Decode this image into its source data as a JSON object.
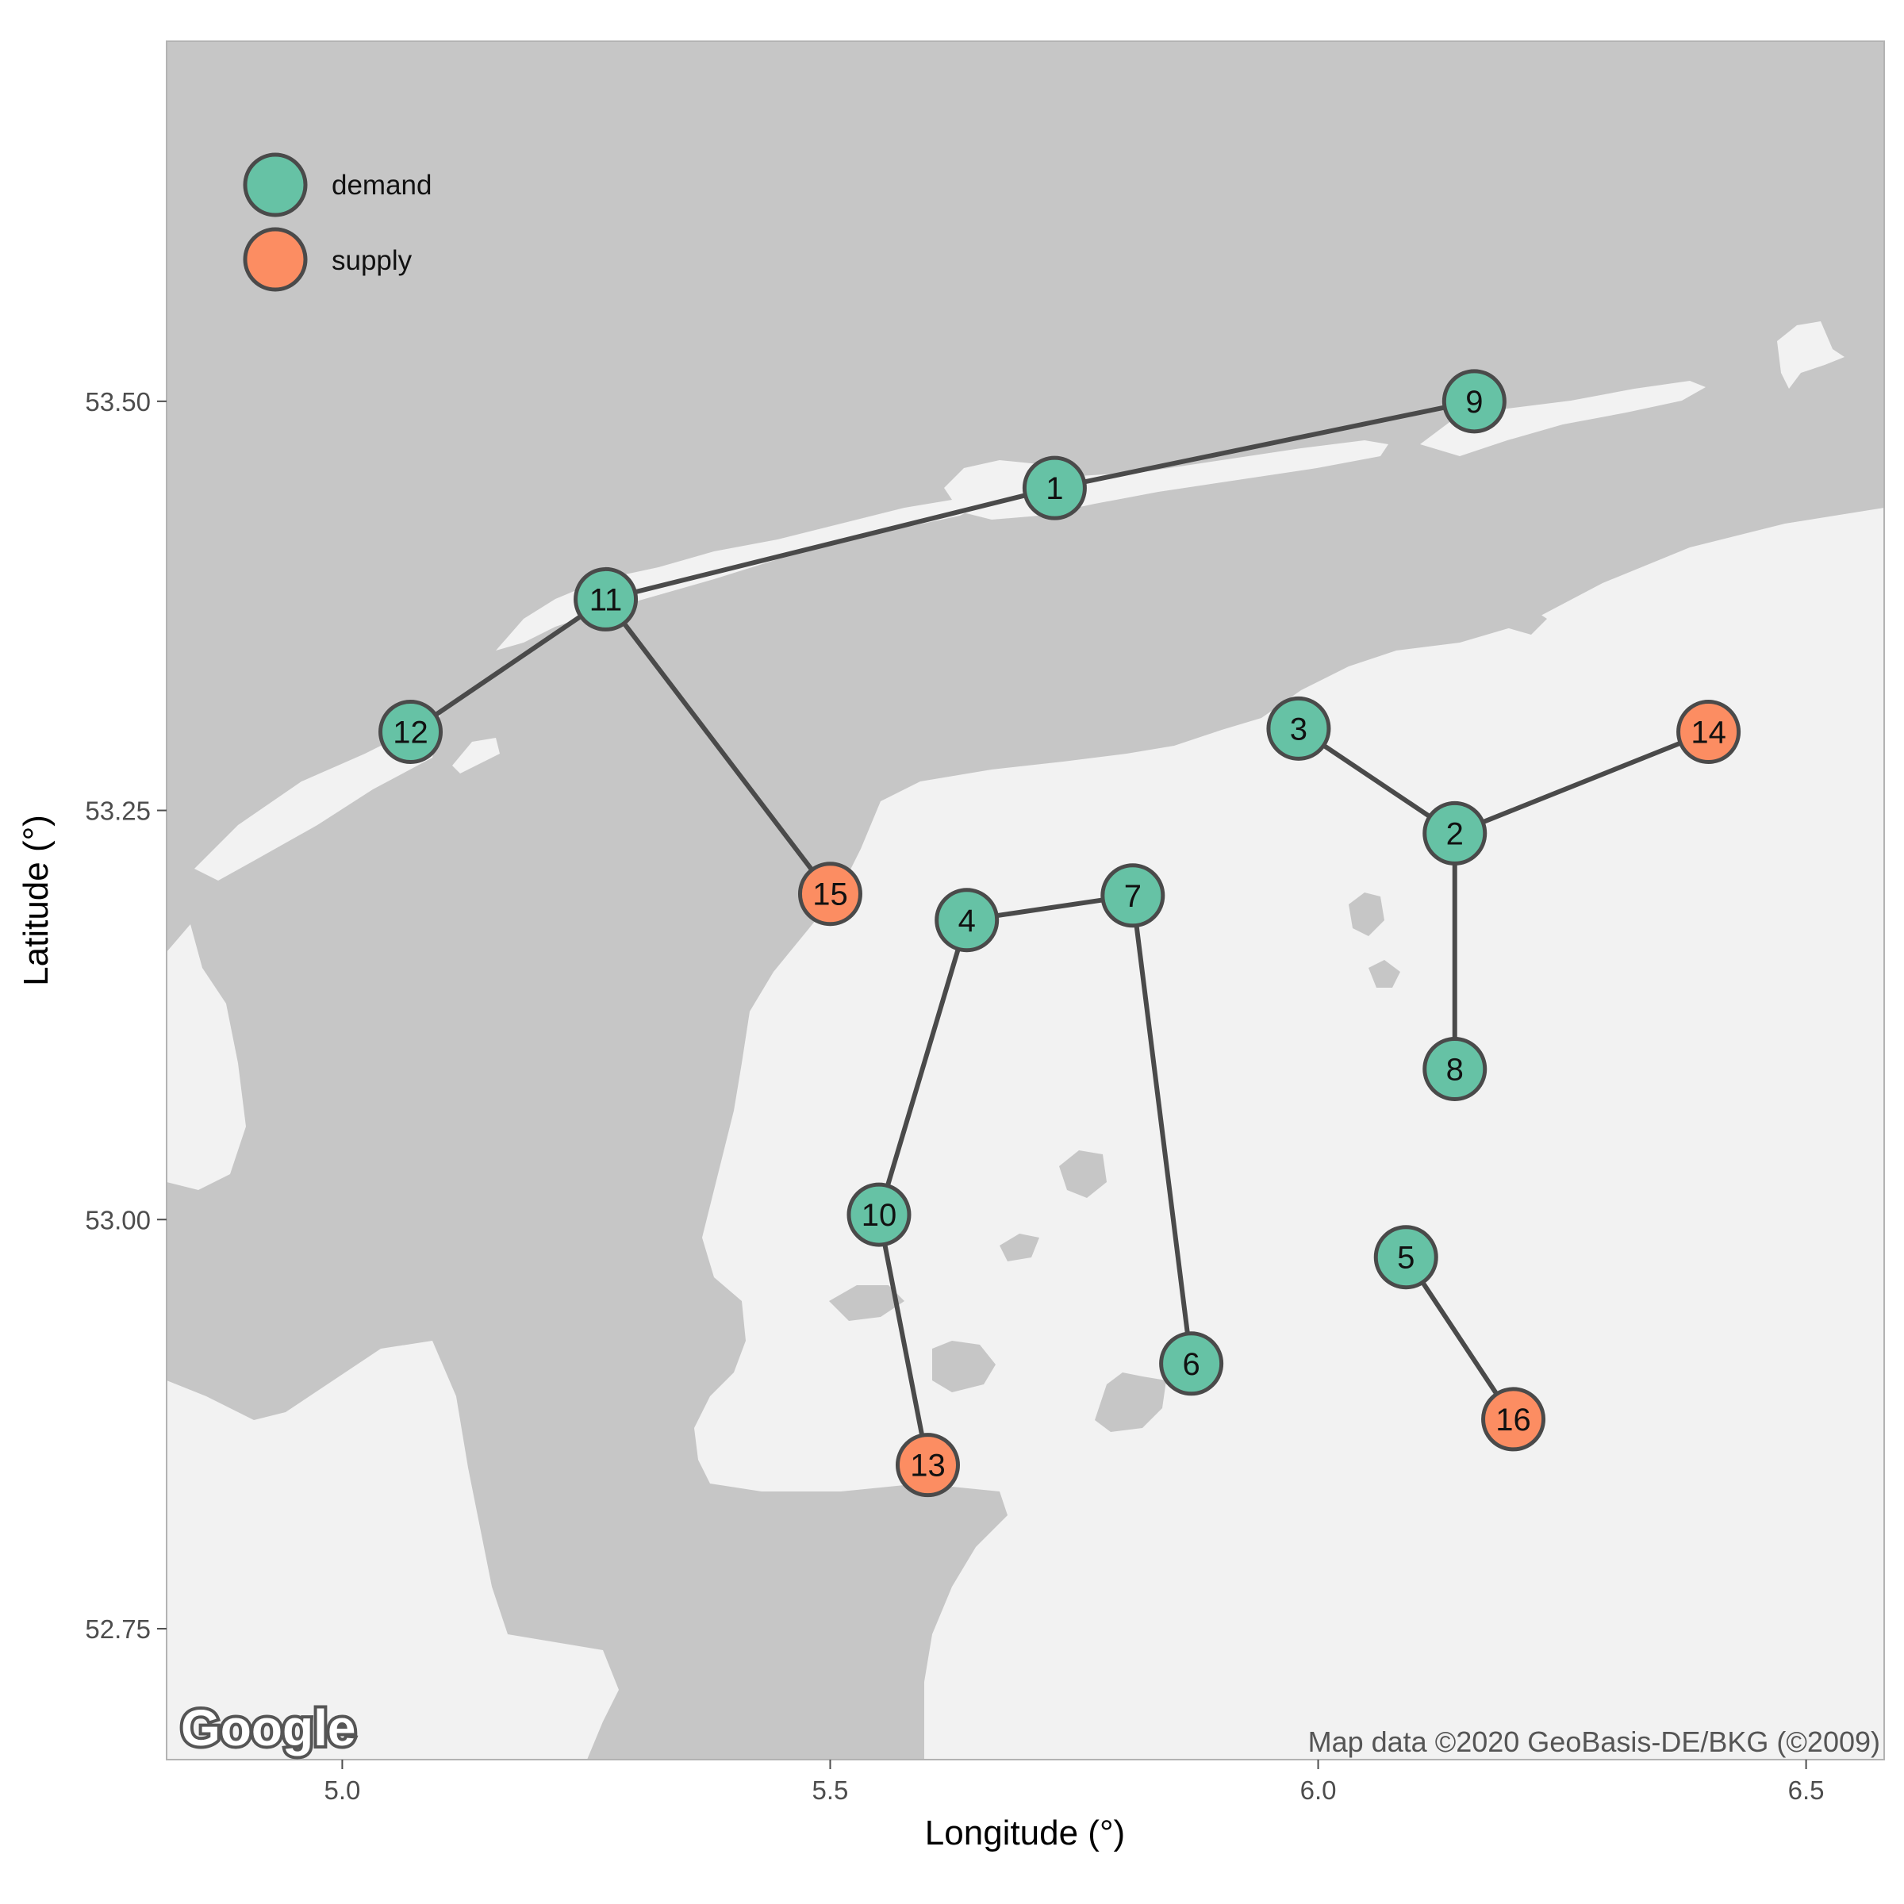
{
  "axes": {
    "xlabel": "Longitude (°)",
    "ylabel": "Latitude (°)",
    "xlim": [
      4.82,
      6.58
    ],
    "ylim": [
      52.67,
      53.72
    ],
    "xticks": [
      {
        "value": 5.0,
        "label": "5.0"
      },
      {
        "value": 5.5,
        "label": "5.5"
      },
      {
        "value": 6.0,
        "label": "6.0"
      },
      {
        "value": 6.5,
        "label": "6.5"
      }
    ],
    "yticks": [
      {
        "value": 52.75,
        "label": "52.75"
      },
      {
        "value": 53.0,
        "label": "53.00"
      },
      {
        "value": 53.25,
        "label": "53.25"
      },
      {
        "value": 53.5,
        "label": "53.50"
      }
    ]
  },
  "legend": {
    "placement": "top-left",
    "entries": [
      {
        "label": "demand",
        "color": "#66c2a5"
      },
      {
        "label": "supply",
        "color": "#fc8d62"
      }
    ]
  },
  "map": {
    "water_color": "#c6c6c6",
    "land_color": "#f2f2f2",
    "logo_text": "Google",
    "credit": "Map data ©2020 GeoBasis-DE/BKG (©2009)"
  },
  "chart_data": {
    "type": "scatter",
    "title": "",
    "xlabel": "Longitude (°)",
    "ylabel": "Latitude (°)",
    "colors": {
      "demand": "#66c2a5",
      "supply": "#fc8d62"
    },
    "nodes": [
      {
        "id": "1",
        "lon": 5.73,
        "lat": 53.447,
        "type": "demand"
      },
      {
        "id": "2",
        "lon": 6.14,
        "lat": 53.236,
        "type": "demand"
      },
      {
        "id": "3",
        "lon": 5.98,
        "lat": 53.3,
        "type": "demand"
      },
      {
        "id": "4",
        "lon": 5.64,
        "lat": 53.183,
        "type": "demand"
      },
      {
        "id": "5",
        "lon": 6.09,
        "lat": 52.977,
        "type": "demand"
      },
      {
        "id": "6",
        "lon": 5.87,
        "lat": 52.912,
        "type": "demand"
      },
      {
        "id": "7",
        "lon": 5.81,
        "lat": 53.198,
        "type": "demand"
      },
      {
        "id": "8",
        "lon": 6.14,
        "lat": 53.092,
        "type": "demand"
      },
      {
        "id": "9",
        "lon": 6.16,
        "lat": 53.5,
        "type": "demand"
      },
      {
        "id": "10",
        "lon": 5.55,
        "lat": 53.003,
        "type": "demand"
      },
      {
        "id": "11",
        "lon": 5.27,
        "lat": 53.379,
        "type": "demand"
      },
      {
        "id": "12",
        "lon": 5.07,
        "lat": 53.298,
        "type": "demand"
      },
      {
        "id": "13",
        "lon": 5.6,
        "lat": 52.85,
        "type": "supply"
      },
      {
        "id": "14",
        "lon": 6.4,
        "lat": 53.298,
        "type": "supply"
      },
      {
        "id": "15",
        "lon": 5.5,
        "lat": 53.199,
        "type": "supply"
      },
      {
        "id": "16",
        "lon": 6.2,
        "lat": 52.878,
        "type": "supply"
      }
    ],
    "edges": [
      [
        "1",
        "9"
      ],
      [
        "1",
        "11"
      ],
      [
        "11",
        "12"
      ],
      [
        "11",
        "15"
      ],
      [
        "3",
        "2"
      ],
      [
        "2",
        "14"
      ],
      [
        "2",
        "8"
      ],
      [
        "4",
        "7"
      ],
      [
        "4",
        "10"
      ],
      [
        "10",
        "13"
      ],
      [
        "7",
        "6"
      ],
      [
        "5",
        "16"
      ]
    ]
  }
}
